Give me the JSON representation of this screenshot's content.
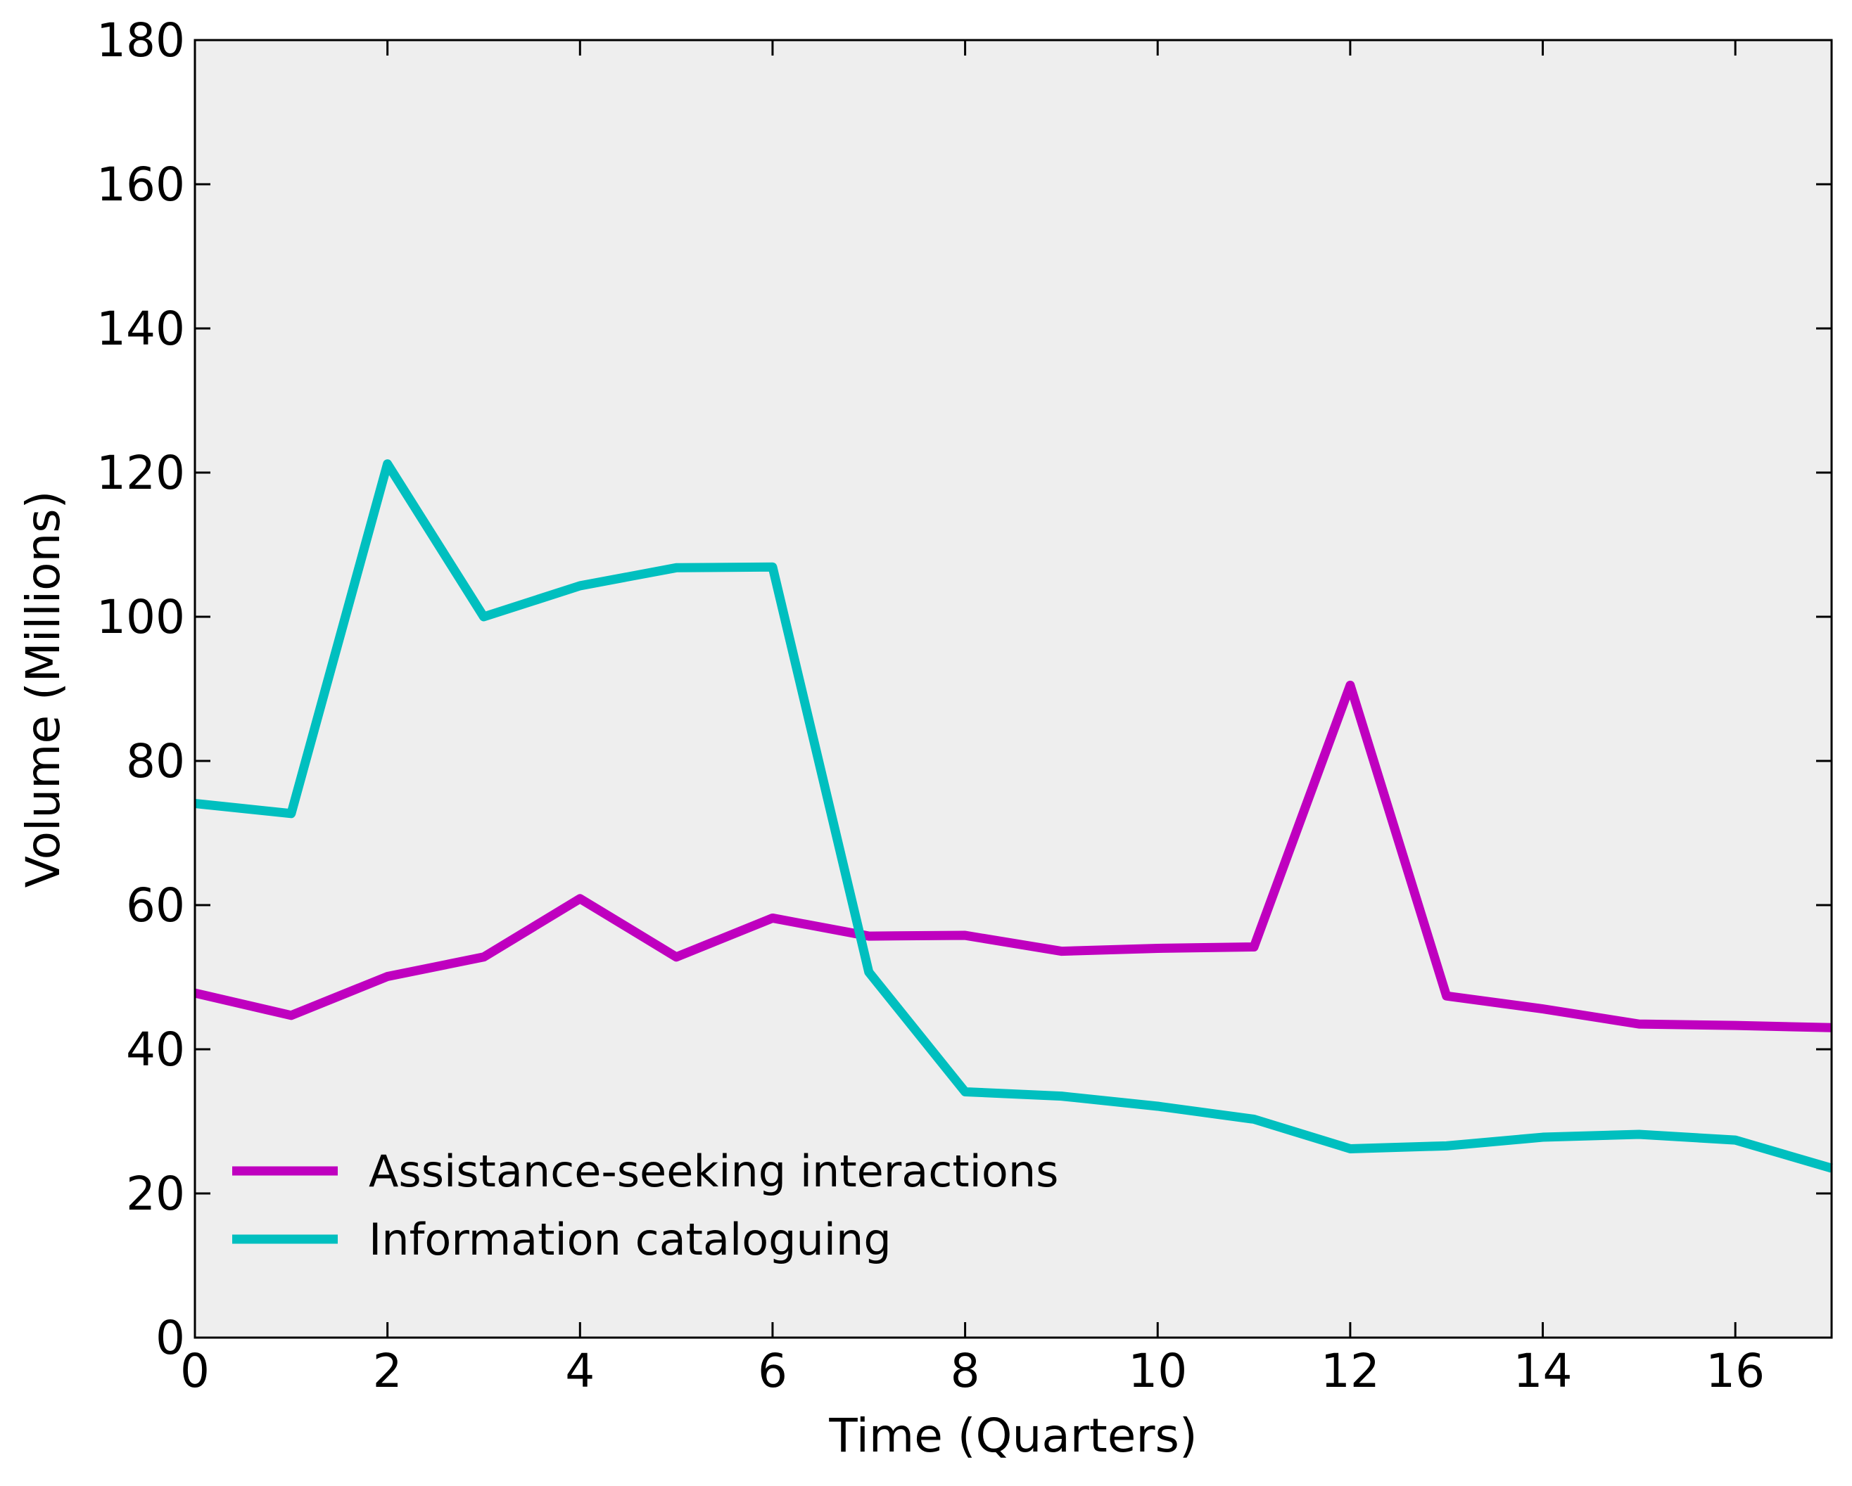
{
  "chart_data": {
    "type": "line",
    "title": "",
    "xlabel": "Time (Quarters)",
    "ylabel": "Volume (Millions)",
    "xlim": [
      0,
      17
    ],
    "ylim": [
      0,
      180
    ],
    "x_ticks": [
      "0",
      "2",
      "4",
      "6",
      "8",
      "10",
      "12",
      "14",
      "16"
    ],
    "y_ticks": [
      "0",
      "20",
      "40",
      "60",
      "80",
      "100",
      "120",
      "140",
      "160",
      "180"
    ],
    "grid": false,
    "legend_position": "lower-left",
    "background_color": "#eeeeee",
    "x": [
      0,
      1,
      2,
      3,
      4,
      5,
      6,
      7,
      8,
      9,
      10,
      11,
      12,
      13,
      14,
      15,
      16,
      17
    ],
    "series": [
      {
        "name": "Assistance-seeking interactions",
        "color": "#bf00bf",
        "values": [
          47.8,
          44.7,
          50.1,
          52.8,
          60.9,
          52.8,
          58.2,
          55.7,
          55.8,
          53.6,
          54.0,
          54.2,
          90.5,
          47.4,
          45.6,
          43.5,
          43.3,
          43.0
        ]
      },
      {
        "name": "Information cataloguing",
        "color": "#00bfbf",
        "values": [
          74.1,
          72.7,
          121.2,
          100.0,
          104.3,
          106.8,
          106.9,
          50.7,
          34.1,
          33.5,
          32.1,
          30.3,
          26.2,
          26.6,
          27.8,
          28.2,
          27.4,
          23.5
        ]
      }
    ]
  }
}
